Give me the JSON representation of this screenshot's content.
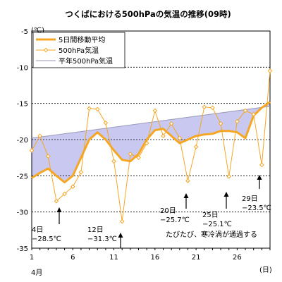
{
  "chart_data": {
    "type": "line",
    "title": "つくばにおける500hPaの気温の推移(09時)",
    "ylabel": "(℃)",
    "xlabel": "(日)",
    "month_label": "4月",
    "ylim": [
      -35,
      -5
    ],
    "xlim": [
      1,
      30
    ],
    "y_ticks": [
      "-5",
      "-10",
      "-15",
      "-20",
      "-25",
      "-30",
      "-35"
    ],
    "x_ticks": [
      "1",
      "6",
      "11",
      "16",
      "21",
      "26"
    ],
    "grid": "horizontal dashed",
    "legend_position": "top-left",
    "x": [
      1,
      2,
      3,
      4,
      5,
      6,
      7,
      8,
      9,
      10,
      11,
      12,
      13,
      14,
      15,
      16,
      17,
      18,
      19,
      20,
      21,
      22,
      23,
      24,
      25,
      26,
      27,
      28,
      29,
      30
    ],
    "series": [
      {
        "name": "5日間移動平均",
        "color": "#f5a623",
        "x": [
          1,
          2,
          3,
          4,
          5,
          6,
          7,
          8,
          9,
          10,
          11,
          12,
          13,
          14,
          15,
          16,
          17,
          18,
          19,
          20,
          21,
          22,
          23,
          24,
          25,
          26,
          27,
          28,
          29,
          30
        ],
        "values": [
          -25.3,
          -24.6,
          -24.0,
          -25.0,
          -25.9,
          -25.0,
          -22.5,
          -20.0,
          -19.0,
          -20.0,
          -21.5,
          -22.8,
          -23.0,
          -22.0,
          -20.0,
          -18.7,
          -18.5,
          -19.5,
          -20.5,
          -20.0,
          -19.5,
          -19.3,
          -19.2,
          -18.8,
          -18.8,
          -19.0,
          -19.8,
          -16.7,
          -15.6,
          -14.8
        ]
      },
      {
        "name": "500hPa気温",
        "color": "#f5a623",
        "x": [
          1,
          2,
          3,
          4,
          5,
          6,
          7,
          8,
          9,
          10,
          11,
          12,
          13,
          14,
          15,
          16,
          17,
          18,
          19,
          20,
          21,
          22,
          23,
          24,
          25,
          26,
          27,
          28,
          29,
          30
        ],
        "values": [
          -21.5,
          -19.5,
          -22.3,
          -28.5,
          -27.5,
          -26.5,
          -24.5,
          -15.7,
          -15.8,
          -17.7,
          -23.0,
          -31.3,
          -22.0,
          -22.5,
          -20.5,
          -16.0,
          -19.5,
          -17.8,
          -19.8,
          -25.7,
          -21.0,
          -15.5,
          -15.6,
          -17.8,
          -25.1,
          -17.5,
          -16.0,
          -16.5,
          -23.5,
          -10.5
        ]
      },
      {
        "name": "平年500hPa気温",
        "color": "#9a9ab8",
        "x": [
          1,
          30
        ],
        "values": [
          -19.8,
          -15.4
        ]
      }
    ],
    "fill_between_color": "#c8c8f0",
    "annotations": [
      {
        "lines": [
          "4日",
          "−28.5℃"
        ],
        "x": 4,
        "y": -28.5
      },
      {
        "lines": [
          "12日",
          "−31.3℃"
        ],
        "x": 12,
        "y": -31.3
      },
      {
        "lines": [
          "20日",
          "−25.7℃"
        ],
        "x": 20,
        "y": -25.7
      },
      {
        "lines": [
          "25日",
          "−25.1℃"
        ],
        "x": 25,
        "y": -25.1
      },
      {
        "lines": [
          "29日",
          "−23.5℃"
        ],
        "x": 29,
        "y": -23.5
      }
    ],
    "note": "たびたび、寒冷渦が通過する"
  }
}
